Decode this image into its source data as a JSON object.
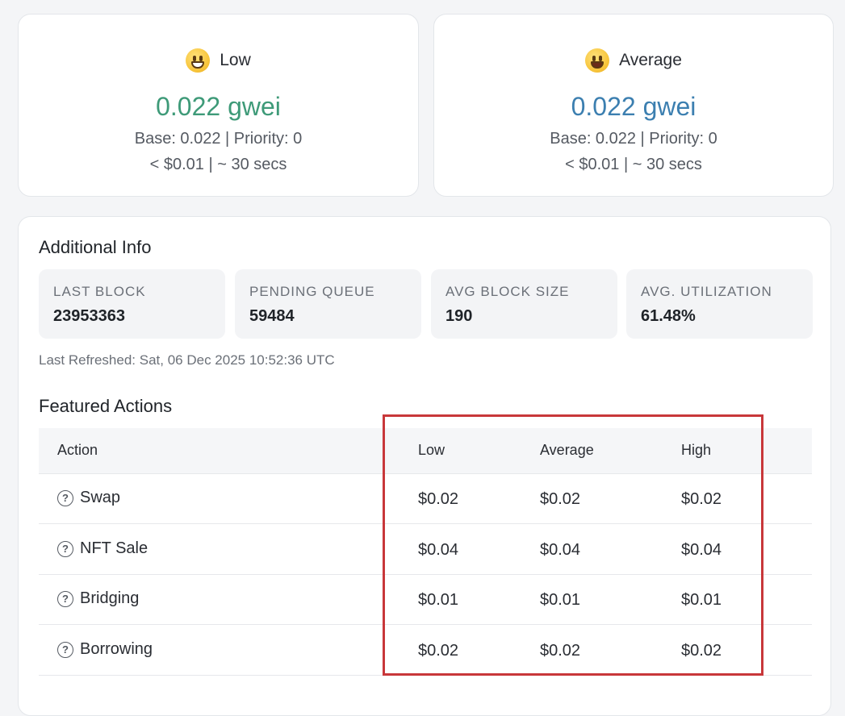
{
  "gas_cards": {
    "low": {
      "label": "Low",
      "emoji_icon": "grinning-face-with-smiling-eyes-icon",
      "price": "0.022 gwei",
      "base_priority": "Base: 0.022 | Priority: 0",
      "cost_time": "< $0.01 | ~ 30 secs",
      "price_color": "#3e9a78"
    },
    "average": {
      "label": "Average",
      "emoji_icon": "grinning-face-icon",
      "price": "0.022 gwei",
      "base_priority": "Base: 0.022 | Priority: 0",
      "cost_time": "< $0.01 | ~ 30 secs",
      "price_color": "#3c7fb0"
    }
  },
  "additional_info": {
    "title": "Additional Info",
    "stats": [
      {
        "label": "LAST BLOCK",
        "value": "23953363"
      },
      {
        "label": "PENDING QUEUE",
        "value": "59484"
      },
      {
        "label": "AVG BLOCK SIZE",
        "value": "190"
      },
      {
        "label": "AVG. UTILIZATION",
        "value": "61.48%"
      }
    ],
    "last_refreshed": "Last Refreshed: Sat, 06 Dec 2025 10:52:36 UTC"
  },
  "featured_actions": {
    "title": "Featured Actions",
    "headers": {
      "action": "Action",
      "low": "Low",
      "average": "Average",
      "high": "High"
    },
    "rows": [
      {
        "action": "Swap",
        "low": "$0.02",
        "average": "$0.02",
        "high": "$0.02"
      },
      {
        "action": "NFT Sale",
        "low": "$0.04",
        "average": "$0.04",
        "high": "$0.04"
      },
      {
        "action": "Bridging",
        "low": "$0.01",
        "average": "$0.01",
        "high": "$0.01"
      },
      {
        "action": "Borrowing",
        "low": "$0.02",
        "average": "$0.02",
        "high": "$0.02"
      }
    ]
  },
  "highlight_color": "#c8373a"
}
